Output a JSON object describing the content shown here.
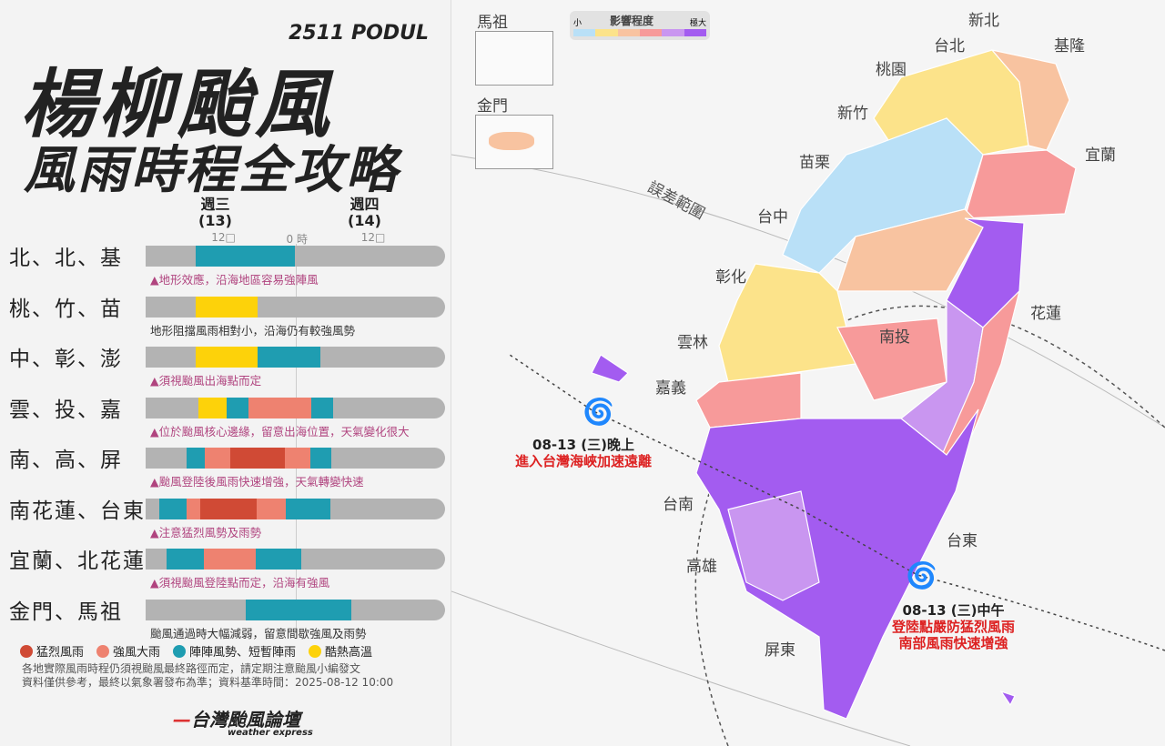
{
  "header": {
    "code": "2511 PODUL",
    "title": "楊柳颱風",
    "subtitle": "風雨時程全攻略"
  },
  "timeline": {
    "days": [
      {
        "label": "週三",
        "date": "(13)"
      },
      {
        "label": "週四",
        "date": "(14)"
      }
    ],
    "ticks": [
      {
        "hour": 12,
        "label": "12□"
      },
      {
        "hour": 24,
        "label": "0 時"
      },
      {
        "hour": 36,
        "label": "12□"
      }
    ],
    "hour_range": [
      0,
      48
    ],
    "colors": {
      "severe": "#d04a35",
      "strong": "#ee8270",
      "gusty": "#1f9db1",
      "hot": "#fdd20a",
      "none": "#b3b3b3"
    },
    "rows": [
      {
        "region": "北、北、基",
        "note": "地形效應，沿海地區容易強陣風",
        "warning": true,
        "segments": [
          {
            "type": "gusty",
            "start": 8,
            "end": 24
          }
        ]
      },
      {
        "region": "桃、竹、苗",
        "note": "地形阻擋風雨相對小，沿海仍有較強風勢",
        "warning": false,
        "segments": [
          {
            "type": "hot",
            "start": 8,
            "end": 18
          }
        ]
      },
      {
        "region": "中、彰、澎",
        "note": "須視颱風出海點而定",
        "warning": true,
        "segments": [
          {
            "type": "hot",
            "start": 8,
            "end": 18
          },
          {
            "type": "gusty",
            "start": 18,
            "end": 28
          }
        ]
      },
      {
        "region": "雲、投、嘉",
        "note": "位於颱風核心邊緣，留意出海位置，天氣變化很大",
        "warning": true,
        "segments": [
          {
            "type": "hot",
            "start": 8.5,
            "end": 13
          },
          {
            "type": "gusty",
            "start": 13,
            "end": 16.5
          },
          {
            "type": "strong",
            "start": 16.5,
            "end": 26.5
          },
          {
            "type": "gusty",
            "start": 26.5,
            "end": 30
          }
        ]
      },
      {
        "region": "南、高、屏",
        "note": "颱風登陸後風雨快速增強，天氣轉變快速",
        "warning": true,
        "segments": [
          {
            "type": "gusty",
            "start": 6.5,
            "end": 9.5
          },
          {
            "type": "strong",
            "start": 9.5,
            "end": 13.5
          },
          {
            "type": "severe",
            "start": 13.5,
            "end": 22.3
          },
          {
            "type": "strong",
            "start": 22.3,
            "end": 26.4
          },
          {
            "type": "gusty",
            "start": 26.4,
            "end": 29.7
          }
        ]
      },
      {
        "region": "南花蓮、台東",
        "note": "注意猛烈風勢及雨勢",
        "warning": true,
        "segments": [
          {
            "type": "gusty",
            "start": 2.2,
            "end": 6.6
          },
          {
            "type": "strong",
            "start": 6.6,
            "end": 8.8
          },
          {
            "type": "severe",
            "start": 8.8,
            "end": 17.8
          },
          {
            "type": "strong",
            "start": 17.8,
            "end": 22.4
          },
          {
            "type": "gusty",
            "start": 22.4,
            "end": 29.6
          }
        ]
      },
      {
        "region": "宜蘭、北花蓮",
        "note": "須視颱風登陸點而定，沿海有強風",
        "warning": true,
        "segments": [
          {
            "type": "gusty",
            "start": 3.3,
            "end": 9.3
          },
          {
            "type": "strong",
            "start": 9.3,
            "end": 17.6
          },
          {
            "type": "gusty",
            "start": 17.6,
            "end": 25
          }
        ]
      },
      {
        "region": "金門、馬祖",
        "note": "颱風通過時大幅減弱，留意間歇強風及雨勢",
        "warning": false,
        "segments": [
          {
            "type": "gusty",
            "start": 16,
            "end": 33
          }
        ]
      }
    ],
    "legend": [
      {
        "type": "severe",
        "label": "猛烈風雨"
      },
      {
        "type": "strong",
        "label": "強風大雨"
      },
      {
        "type": "gusty",
        "label": "陣陣風勢、短暫陣雨"
      },
      {
        "type": "hot",
        "label": "酷熱高溫"
      }
    ]
  },
  "footer": {
    "line1": "各地實際風雨時程仍須視颱風最終路徑而定，請定期注意颱風小編發文",
    "line2": "資料僅供參考，最終以氣象署發布為準；資料基準時間：2025-08-12 10:00",
    "logo": "台灣颱風論壇",
    "logo_sub": "weather express"
  },
  "map": {
    "scale": {
      "title": "影響程度",
      "min": "小",
      "max": "極大",
      "colors": [
        "#b9e0f7",
        "#fce38a",
        "#f8c3a0",
        "#f79a9a",
        "#c996f0",
        "#a35cf0"
      ]
    },
    "insets": [
      "馬祖",
      "金門"
    ],
    "error_label": "誤差範圍",
    "cities": [
      "新北",
      "台北",
      "基隆",
      "桃園",
      "新竹",
      "宜蘭",
      "苗栗",
      "台中",
      "彰化",
      "花蓮",
      "南投",
      "雲林",
      "嘉義",
      "台南",
      "高雄",
      "台東",
      "屏東"
    ],
    "annotations": [
      {
        "time": "08-13 (三)晚上",
        "text": "進入台灣海峽加速遠離"
      },
      {
        "time": "08-13 (三)中午",
        "text": "登陸點嚴防猛烈風雨",
        "text2": "南部風雨快速增強"
      }
    ]
  }
}
